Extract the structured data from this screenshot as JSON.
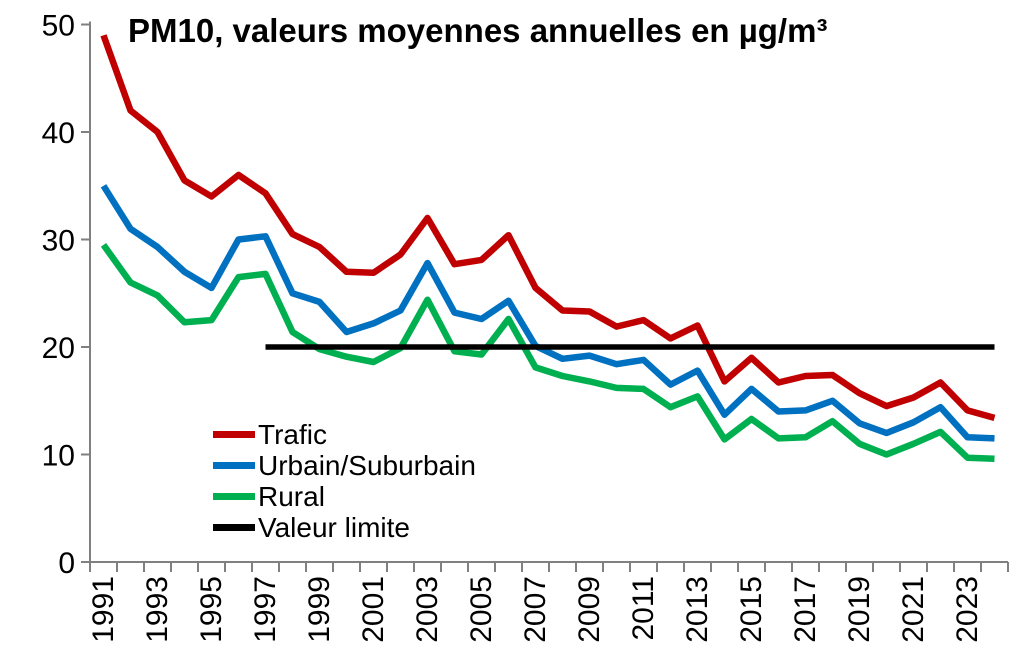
{
  "chart_data": {
    "type": "line",
    "title": "PM10, valeurs moyennes annuelles en µg/m³",
    "x": [
      1991,
      1992,
      1993,
      1994,
      1995,
      1996,
      1997,
      1998,
      1999,
      2000,
      2001,
      2002,
      2003,
      2004,
      2005,
      2006,
      2007,
      2008,
      2009,
      2010,
      2011,
      2012,
      2013,
      2014,
      2015,
      2016,
      2017,
      2018,
      2019,
      2020,
      2021,
      2022,
      2023,
      2024
    ],
    "x_tick_labels": [
      "1991",
      "1993",
      "1995",
      "1997",
      "1999",
      "2001",
      "2003",
      "2005",
      "2007",
      "2009",
      "2011",
      "2013",
      "2015",
      "2017",
      "2019",
      "2021",
      "2023"
    ],
    "y_ticks": [
      0,
      10,
      20,
      30,
      40,
      50
    ],
    "ylim": [
      0,
      50
    ],
    "grid": false,
    "legend_position": "inside-bottom-left",
    "series": [
      {
        "name": "Trafic",
        "color": "#C00000",
        "values": [
          49,
          42,
          40,
          35.5,
          34,
          36,
          34.3,
          30.5,
          29.3,
          27,
          26.9,
          28.6,
          32,
          27.7,
          28.1,
          30.4,
          25.5,
          23.4,
          23.3,
          21.9,
          22.5,
          20.8,
          22,
          16.8,
          19,
          16.7,
          17.3,
          17.4,
          15.7,
          14.5,
          15.3,
          16.7,
          14.1,
          13.4
        ]
      },
      {
        "name": "Urbain/Suburbain",
        "color": "#0070C0",
        "values": [
          35,
          31,
          29.3,
          27,
          25.5,
          30,
          30.3,
          25,
          24.2,
          21.4,
          22.2,
          23.4,
          27.8,
          23.2,
          22.6,
          24.3,
          20.1,
          18.9,
          19.2,
          18.4,
          18.8,
          16.5,
          17.8,
          13.7,
          16.1,
          14,
          14.1,
          15,
          12.9,
          12,
          13,
          14.4,
          11.6,
          11.5
        ]
      },
      {
        "name": "Rural",
        "color": "#00B050",
        "values": [
          29.5,
          26,
          24.8,
          22.3,
          22.5,
          26.5,
          26.8,
          21.4,
          19.8,
          19.1,
          18.6,
          19.9,
          24.4,
          19.6,
          19.3,
          22.6,
          18.1,
          17.3,
          16.8,
          16.2,
          16.1,
          14.4,
          15.4,
          11.4,
          13.3,
          11.5,
          11.6,
          13.1,
          11,
          10,
          11,
          12.1,
          9.7,
          9.6
        ]
      },
      {
        "name": "Valeur limite",
        "color": "#000000",
        "values": [
          null,
          null,
          null,
          null,
          null,
          null,
          20,
          20,
          20,
          20,
          20,
          20,
          20,
          20,
          20,
          20,
          20,
          20,
          20,
          20,
          20,
          20,
          20,
          20,
          20,
          20,
          20,
          20,
          20,
          20,
          20,
          20,
          20,
          20
        ]
      }
    ],
    "axis_color": "#808080",
    "tick_label_color": "#000000",
    "background_color": "#FFFFFF"
  }
}
